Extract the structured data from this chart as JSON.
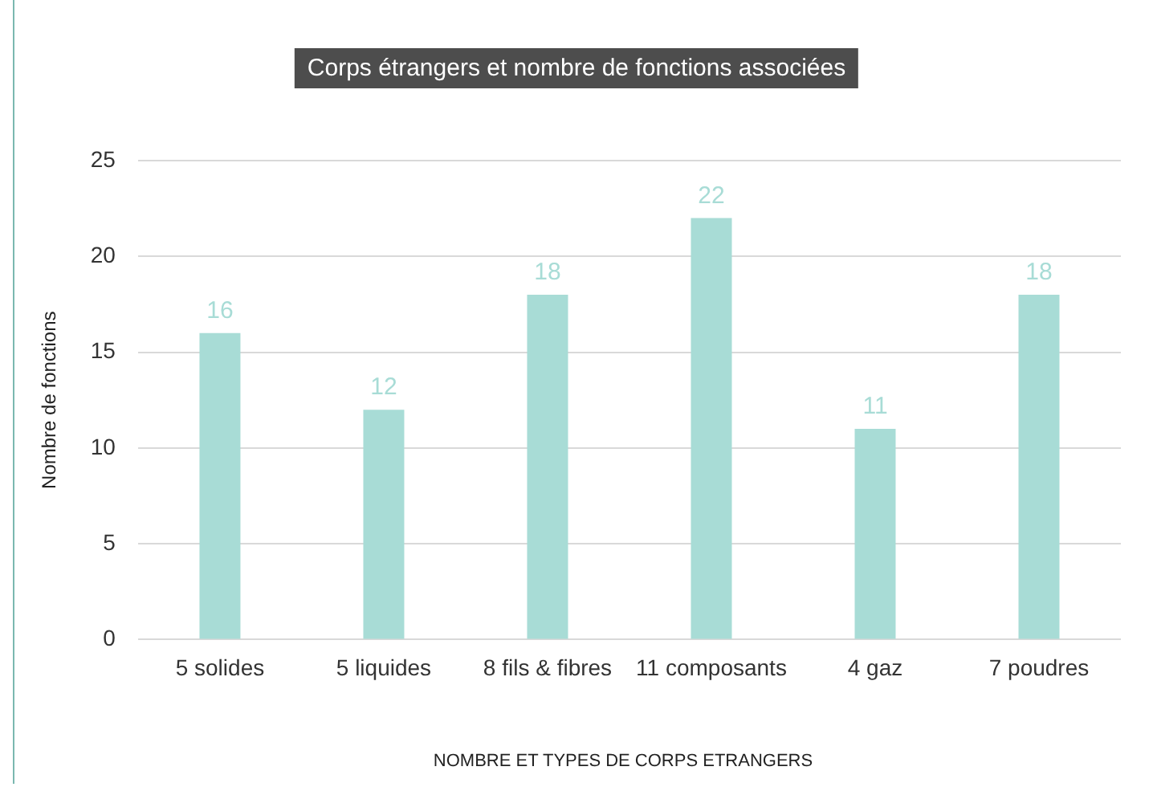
{
  "chart_data": {
    "type": "bar",
    "title": "Corps étrangers et nombre de fonctions associées",
    "xlabel": "NOMBRE ET TYPES DE CORPS ETRANGERS",
    "ylabel": "Nombre de fonctions",
    "categories": [
      "5 solides",
      "5 liquides",
      "8 fils & fibres",
      "11 composants",
      "4 gaz",
      "7 poudres"
    ],
    "values": [
      16,
      12,
      18,
      22,
      11,
      18
    ],
    "color": "#a8dcd6",
    "ylim": [
      0,
      25
    ],
    "yticks": [
      0,
      5,
      10,
      15,
      20,
      25
    ],
    "grid": "y",
    "data_labels": true,
    "legend": false
  }
}
